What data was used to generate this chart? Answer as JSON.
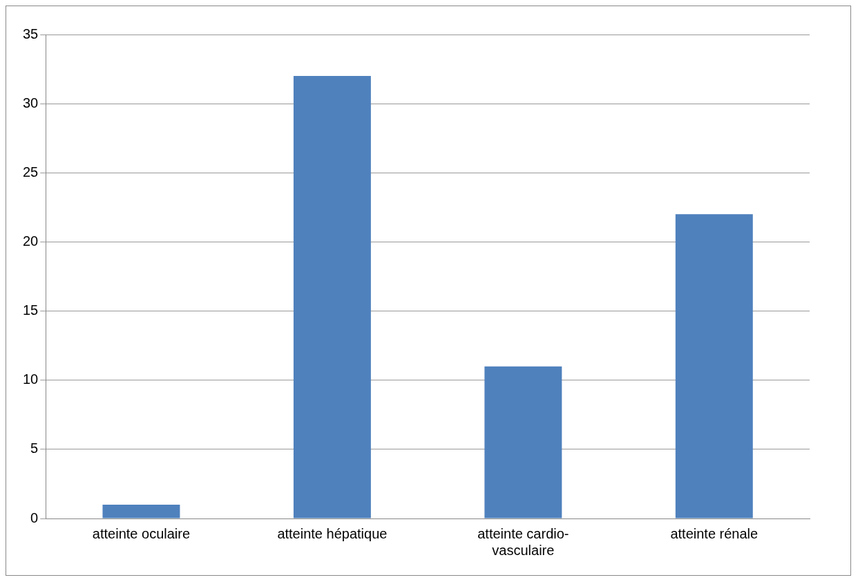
{
  "chart_data": {
    "type": "bar",
    "categories": [
      "atteinte oculaire",
      "atteinte hépatique",
      "atteinte cardio-vasculaire",
      "atteinte rénale"
    ],
    "values": [
      1,
      32,
      11,
      22
    ],
    "color": "#4f81bd",
    "ylim": [
      0,
      35
    ],
    "yticks": [
      0,
      5,
      10,
      15,
      20,
      25,
      30,
      35
    ],
    "grid": "y",
    "legend": false
  }
}
